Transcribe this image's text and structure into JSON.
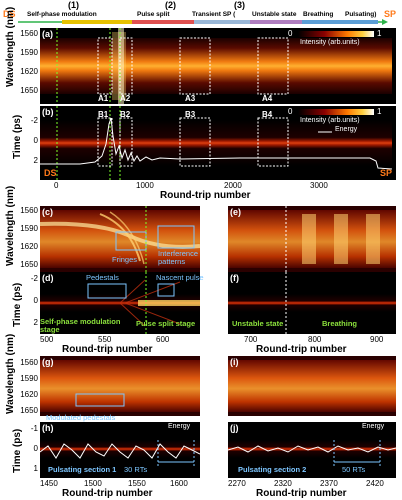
{
  "header": {
    "ds": "DS",
    "sp": "SP",
    "stage1_num": "(1)",
    "stage1_label": "Self-phase modulation",
    "stage2_num": "(2)",
    "stage2_label": "Pulse split",
    "stage3_num": "(3)",
    "stage3_label": "Transient SP (",
    "stage3_unstable": "Unstable state",
    "stage3_breathing": "Breathing",
    "stage3_pulsating": "Pulsating)",
    "colors": {
      "ds_sp": "#ff7a1a",
      "arrow": "#2db34a",
      "spm": "#e6c200",
      "split": "#e05050",
      "unstable": "#9ab8d8",
      "breathing": "#b07ec0",
      "pulsating": "#5c9ed6"
    }
  },
  "panel_a": {
    "label": "(a)",
    "y_title": "Wavelength (nm)",
    "y_ticks": [
      "1560",
      "1590",
      "1620",
      "1650"
    ],
    "colorbar_label": "Intensity (arb.units)",
    "cb_min": "0",
    "cb_max": "1",
    "boxes": [
      "A1",
      "A2",
      "A3",
      "A4"
    ]
  },
  "panel_b": {
    "label": "(b)",
    "y_title": "Time (ps)",
    "y_ticks": [
      "-2",
      "0",
      "2"
    ],
    "colorbar_label": "Intensity (arb.units)",
    "cb_min": "0",
    "cb_max": "1",
    "legend": "Energy",
    "boxes": [
      "B1",
      "B2",
      "B3",
      "B4"
    ],
    "ds": "DS",
    "sp": "SP"
  },
  "top_x": {
    "ticks": [
      "0",
      "1000",
      "2000",
      "3000"
    ],
    "title": "Round-trip number"
  },
  "panel_c": {
    "label": "(c)",
    "fringes": "Fringes",
    "interference": "Interference patterns"
  },
  "panel_d": {
    "label": "(d)",
    "pedestals": "Pedestals",
    "nascent": "Nascent pulse",
    "spm_stage": "Self-phase modulation stage",
    "split_stage": "Pulse split stage"
  },
  "panel_e": {
    "label": "(e)"
  },
  "panel_f": {
    "label": "(f)",
    "unstable": "Unstable state",
    "breathing": "Breathing"
  },
  "mid_left_x": {
    "ticks": [
      "500",
      "550",
      "600"
    ],
    "title": "Round-trip number"
  },
  "mid_right_x": {
    "ticks": [
      "700",
      "800",
      "900"
    ],
    "title": "Round-trip number"
  },
  "mid_y": {
    "wl_title": "Wavelength (nm)",
    "wl_ticks": [
      "1560",
      "1590",
      "1620",
      "1650"
    ],
    "t_title": "Time (ps)",
    "t_ticks": [
      "-2",
      "0",
      "2"
    ]
  },
  "panel_g": {
    "label": "(g)",
    "modulated": "Modulated pedestals"
  },
  "panel_h": {
    "label": "(h)",
    "energy": "Energy",
    "section": "Pulsating section 1",
    "rts": "30 RTs"
  },
  "panel_i": {
    "label": "(i)"
  },
  "panel_j": {
    "label": "(j)",
    "energy": "Energy",
    "section": "Pulsating section 2",
    "rts": "50 RTs"
  },
  "bot_left_x": {
    "ticks": [
      "1450",
      "1500",
      "1550",
      "1600"
    ],
    "title": "Round-trip number"
  },
  "bot_right_x": {
    "ticks": [
      "2270",
      "2320",
      "2370",
      "2420"
    ],
    "title": "Round-trip number"
  },
  "bot_y": {
    "wl_title": "Wavelength (nm)",
    "wl_ticks": [
      "1560",
      "1590",
      "1620",
      "1650"
    ],
    "t_title": "Time (ps)",
    "t_ticks": [
      "-1",
      "0",
      "1"
    ]
  }
}
